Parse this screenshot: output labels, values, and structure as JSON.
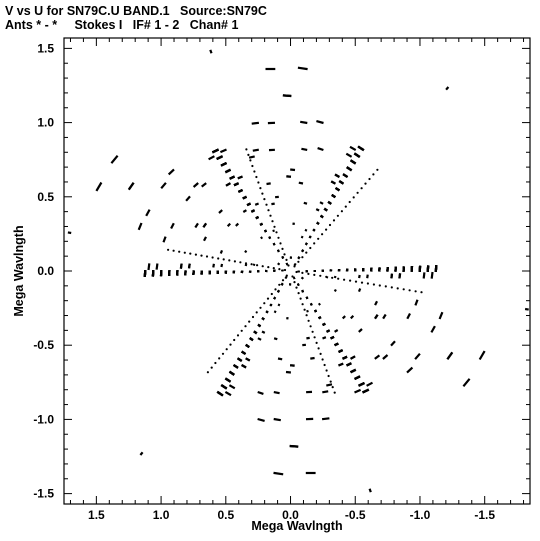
{
  "chart_data": {
    "type": "scatter",
    "title_line1": "V vs U for SN79C.U BAND.1   Source:SN79C",
    "title_line2": "Ants * - *     Stokes I   IF# 1 - 2   Chan# 1",
    "xlabel": "Mega Wavlngth",
    "ylabel": "Mega Wavlngth",
    "xlim": [
      1.75,
      -1.85
    ],
    "ylim": [
      -1.57,
      1.57
    ],
    "x_ticks": [
      1.5,
      1.0,
      0.5,
      0.0,
      -0.5,
      -1.0,
      -1.5
    ],
    "x_tick_labels": [
      "1.5",
      "1.0",
      "0.5",
      "0.0",
      "-0.5",
      "-1.0",
      "-1.5"
    ],
    "y_ticks": [
      1.5,
      1.0,
      0.5,
      0.0,
      -0.5,
      -1.0,
      -1.5
    ],
    "y_tick_labels": [
      "1.5",
      "1.0",
      "0.5",
      "0.0",
      "-0.5",
      "-1.0",
      "-1.5"
    ],
    "uv_model": {
      "arm_angles_deg": [
        0,
        60,
        120
      ],
      "arm_scale": 0.98,
      "arm_outer": 1.15,
      "arm_count": 18,
      "track_arc_deg": 22,
      "point_color": "#000000"
    },
    "arm_endpoints": [
      {
        "u": 1.72,
        "v": 0.26
      },
      {
        "u": 0.62,
        "v": 1.49
      },
      {
        "u": -1.22,
        "v": 1.24
      },
      {
        "u": -1.84,
        "v": -0.26
      },
      {
        "u": -0.62,
        "v": -1.49
      },
      {
        "u": 1.16,
        "v": -1.24
      }
    ]
  }
}
